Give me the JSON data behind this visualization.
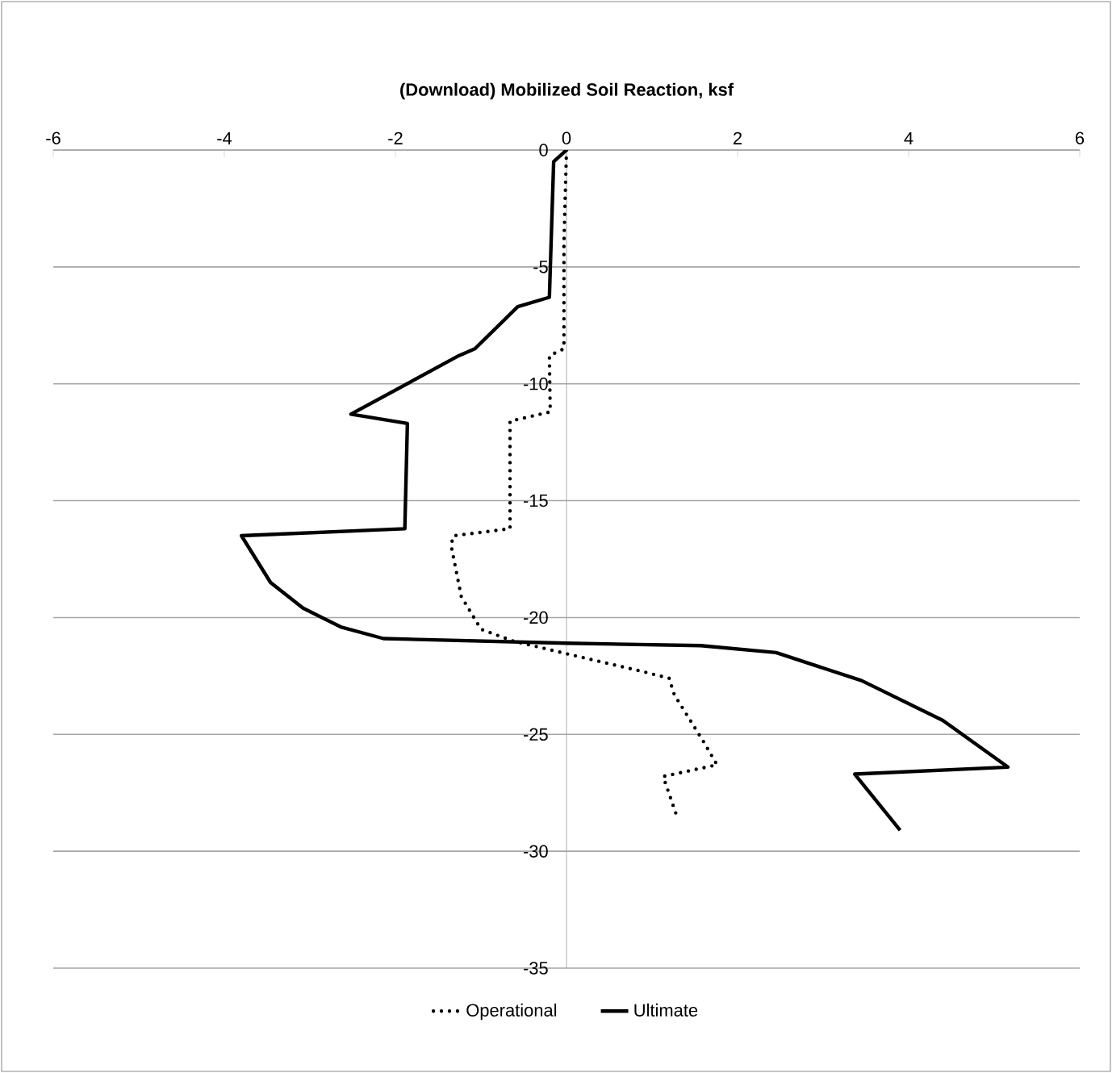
{
  "chart_data": {
    "type": "line",
    "title": "(Download) Mobilized Soil Reaction, ksf",
    "xlim": [
      -6,
      6
    ],
    "xticks": [
      -6,
      -4,
      -2,
      0,
      2,
      4,
      6
    ],
    "ylim": [
      -35,
      0
    ],
    "yticks": [
      0,
      -5,
      -10,
      -15,
      -20,
      -25,
      -30,
      -35
    ],
    "grid": "y",
    "legend": "bottom",
    "series": [
      {
        "name": "Operational",
        "color": "#000000",
        "line_style": "dotted",
        "x": [
          0,
          -0.03,
          -0.03,
          -0.2,
          -0.19,
          -0.66,
          -0.66,
          -1.32,
          -1.35,
          -1.23,
          -1.0,
          -0.63,
          0.06,
          0.88,
          1.2,
          1.26,
          1.6,
          1.76,
          1.13,
          1.29
        ],
        "values": [
          0,
          -4,
          -8.5,
          -8.8,
          -11.2,
          -11.6,
          -16.2,
          -16.5,
          -16.9,
          -19.1,
          -20.5,
          -21.0,
          -21.6,
          -22.3,
          -22.6,
          -23.3,
          -25.3,
          -26.3,
          -26.8,
          -28.5
        ]
      },
      {
        "name": "Ultimate",
        "color": "#000000",
        "line_style": "solid",
        "x": [
          0,
          -0.15,
          -0.2,
          -0.57,
          -1.07,
          -1.26,
          -2.52,
          -1.86,
          -1.89,
          -3.8,
          -3.46,
          -3.08,
          -2.64,
          -2.14,
          0,
          1.57,
          2.45,
          3.45,
          4.4,
          5.16,
          3.37,
          3.9
        ],
        "values": [
          0,
          -0.5,
          -6.3,
          -6.7,
          -8.5,
          -8.8,
          -11.3,
          -11.7,
          -16.2,
          -16.5,
          -18.5,
          -19.6,
          -20.4,
          -20.9,
          -21.1,
          -21.2,
          -21.5,
          -22.7,
          -24.4,
          -26.4,
          -26.7,
          -29.1
        ]
      }
    ]
  }
}
